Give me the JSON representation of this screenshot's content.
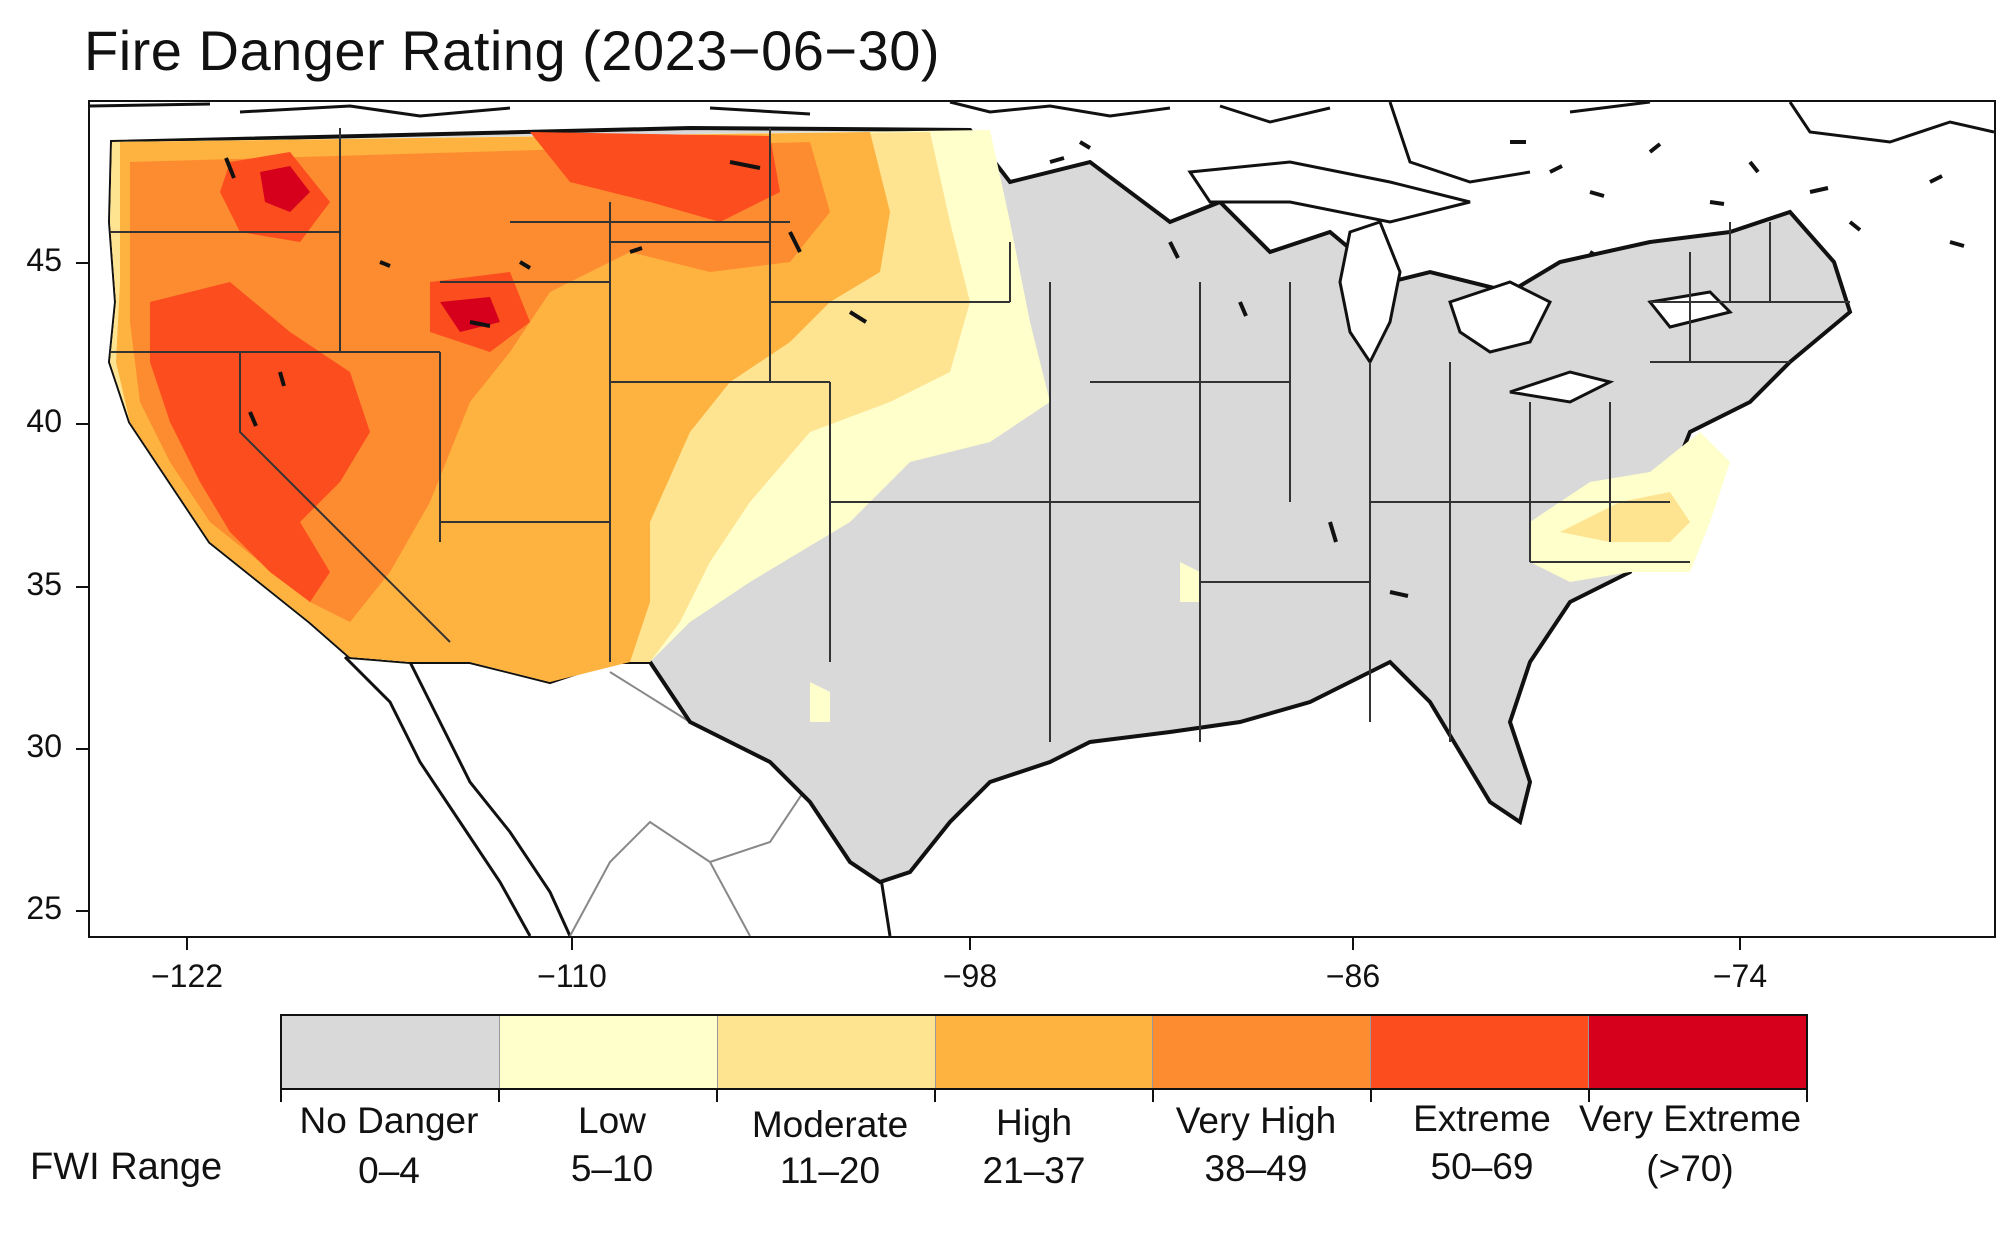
{
  "title": "Fire Danger Rating (2023−06−30)",
  "map": {
    "region": "Contiguous United States",
    "y_axis": {
      "ticks": [
        "45",
        "40",
        "35",
        "30",
        "25"
      ]
    },
    "x_axis": {
      "ticks": [
        "−122",
        "−110",
        "−98",
        "−86",
        "−74"
      ]
    }
  },
  "legend": {
    "row_label": "FWI Range",
    "categories": [
      {
        "name": "No Danger",
        "range": "0–4",
        "color": "#d9d9d9"
      },
      {
        "name": "Low",
        "range": "5–10",
        "color": "#ffffcc"
      },
      {
        "name": "Moderate",
        "range": "11–20",
        "color": "#fee391"
      },
      {
        "name": "High",
        "range": "21–37",
        "color": "#feb23f"
      },
      {
        "name": "Very High",
        "range": "38–49",
        "color": "#fd8c30"
      },
      {
        "name": "Extreme",
        "range": "50–69",
        "color": "#fc4d1f"
      },
      {
        "name": "Very Extreme",
        "range": "(>70)",
        "color": "#d6001c"
      }
    ]
  },
  "colors": {
    "land_outline": "#111111",
    "ocean": "#ffffff",
    "state_border": "#333333"
  }
}
